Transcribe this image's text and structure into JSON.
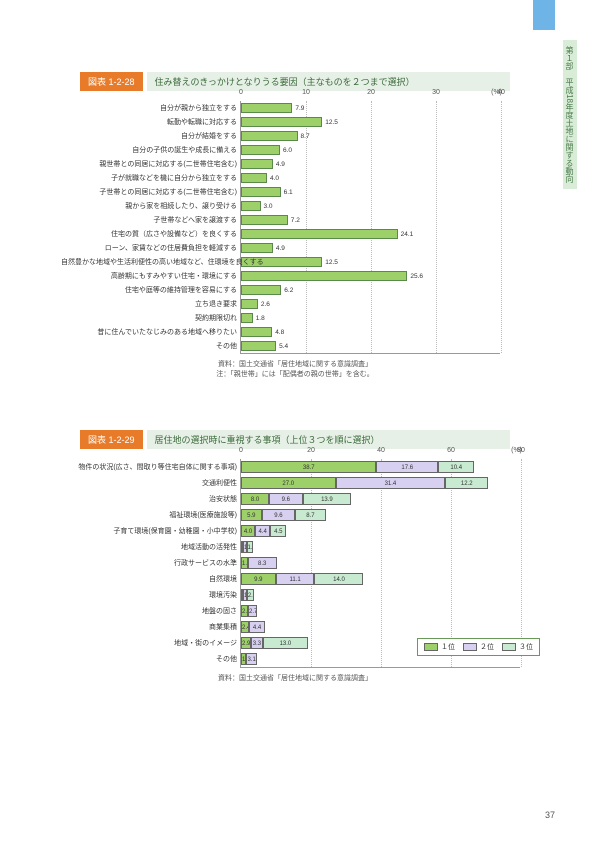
{
  "sidebar_text": "第１部　平成18年度土地に関する動向",
  "page_number": "37",
  "chart1": {
    "badge": "図表 1-2-28",
    "title": "住み替えのきっかけとなりうる要因（主なものを２つまで選択）",
    "unit": "(%)",
    "xmax": 40,
    "ticks": [
      0,
      10,
      20,
      30,
      40
    ],
    "bar_color": "#9ed06a",
    "rows": [
      {
        "label": "自分が親から独立をする",
        "v": 7.9
      },
      {
        "label": "転勤や転職に対応する",
        "v": 12.5
      },
      {
        "label": "自分が結婚をする",
        "v": 8.7
      },
      {
        "label": "自分の子供の誕生や成長に備える",
        "v": 6.0
      },
      {
        "label": "親世帯との同居に対応する(二世帯住宅含む)",
        "v": 4.9
      },
      {
        "label": "子が就職などを機に自分から独立をする",
        "v": 4.0
      },
      {
        "label": "子世帯との同居に対応する(二世帯住宅含む)",
        "v": 6.1
      },
      {
        "label": "親から家を相続したり、譲り受ける",
        "v": 3.0
      },
      {
        "label": "子世帯などへ家を譲渡する",
        "v": 7.2
      },
      {
        "label": "住宅の質（広さや設備など）を良くする",
        "v": 24.1
      },
      {
        "label": "ローン、家賃などの住居費負担を軽減する",
        "v": 4.9
      },
      {
        "label": "自然豊かな地域や生活利便性の高い地域など、住環境を良くする",
        "v": 12.5
      },
      {
        "label": "高齢期にもすみやすい住宅・環境にする",
        "v": 25.6
      },
      {
        "label": "住宅や庭等の維持管理を容易にする",
        "v": 6.2
      },
      {
        "label": "立ち退き要求",
        "v": 2.6
      },
      {
        "label": "契約期限切れ",
        "v": 1.8
      },
      {
        "label": "昔に住んでいたなじみのある地域へ移りたい",
        "v": 4.8
      },
      {
        "label": "その他",
        "v": 5.4
      }
    ],
    "footnote1": "資料：国土交通省「居住地域に関する意識調査」",
    "footnote2": "注：「親世帯」には「配偶者の親の世帯」を含む。"
  },
  "chart2": {
    "badge": "図表 1-2-29",
    "title": "居住地の選択時に重視する事項（上位３つを順に選択）",
    "unit": "(%)",
    "xmax": 80,
    "ticks": [
      0,
      20,
      40,
      60,
      80
    ],
    "colors": [
      "#9ed06a",
      "#d8d0f0",
      "#c8ead0"
    ],
    "legend": [
      "１位",
      "２位",
      "３位"
    ],
    "rows": [
      {
        "label": "物件の状況(広さ、間取り等住宅自体に関する事項)",
        "v": [
          38.7,
          17.6,
          10.4
        ]
      },
      {
        "label": "交通利便性",
        "v": [
          27.0,
          31.4,
          12.2
        ]
      },
      {
        "label": "治安状態",
        "v": [
          8.0,
          9.6,
          13.9
        ]
      },
      {
        "label": "福祉環境(医療施設等)",
        "v": [
          5.9,
          9.6,
          8.7
        ]
      },
      {
        "label": "子育て環境(保育園・幼稚園・小中学校)",
        "v": [
          4.0,
          4.4,
          4.5
        ]
      },
      {
        "label": "地域活動の活発性",
        "v": [
          0.3,
          1.0,
          1.8
        ]
      },
      {
        "label": "行政サービスの水準",
        "v": [
          1.9,
          8.3,
          0
        ]
      },
      {
        "label": "自然環境",
        "v": [
          9.9,
          11.1,
          14.0
        ]
      },
      {
        "label": "環境汚染",
        "v": [
          0.3,
          1.1,
          2.1
        ]
      },
      {
        "label": "地盤の固さ",
        "v": [
          2.0,
          2.7,
          0
        ]
      },
      {
        "label": "商業集積",
        "v": [
          2.4,
          4.4,
          0
        ]
      },
      {
        "label": "地域・街のイメージ",
        "v": [
          2.9,
          3.3,
          13.0
        ]
      },
      {
        "label": "その他",
        "v": [
          1.5,
          3.1,
          0
        ]
      }
    ],
    "footnote": "資料：国土交通省「居住地域に関する意識調査」"
  }
}
